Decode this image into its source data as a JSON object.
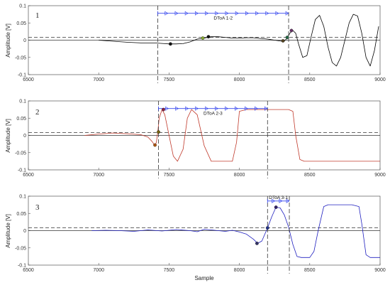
{
  "figure": {
    "xlabel": "Sample",
    "ylabel": "Amplitude [V]"
  },
  "chart_data": [
    {
      "type": "line",
      "panel_label": "1",
      "xlim": [
        6500,
        9000
      ],
      "ylim": [
        -0.1,
        0.1
      ],
      "x_ticks": [
        "6500",
        "7000",
        "7500",
        "8000",
        "8500",
        "9000"
      ],
      "y_ticks": [
        "0.1",
        "0.05",
        "0",
        "-0.05",
        "-0.1"
      ],
      "xlabel": "",
      "ylabel": "Amplitude [V]",
      "series_color": "#000000",
      "series": [
        {
          "x": [
            7000,
            7100,
            7200,
            7300,
            7400,
            7430,
            7470,
            7500,
            7550,
            7600,
            7650,
            7700,
            7750,
            7800,
            7850,
            7900,
            7950,
            8000,
            8050,
            8100,
            8150,
            8200,
            8250,
            8300,
            8320,
            8340,
            8360,
            8380,
            8400,
            8420,
            8450,
            8480,
            8510,
            8540,
            8570,
            8600,
            8630,
            8660,
            8690,
            8720,
            8750,
            8780,
            8810,
            8840,
            8870,
            8900,
            8930,
            8960,
            8990
          ],
          "y": [
            0,
            -0.003,
            -0.006,
            -0.008,
            -0.008,
            -0.009,
            -0.01,
            -0.011,
            -0.011,
            -0.01,
            -0.005,
            0.003,
            0.006,
            0.01,
            0.01,
            0.008,
            0.006,
            0.006,
            0.007,
            0.007,
            0.005,
            0.003,
            0.0,
            -0.003,
            -0.002,
            0.006,
            0.021,
            0.028,
            0.02,
            -0.01,
            -0.05,
            -0.045,
            0.01,
            0.06,
            0.072,
            0.04,
            -0.02,
            -0.065,
            -0.075,
            -0.05,
            0.0,
            0.05,
            0.075,
            0.07,
            0.02,
            -0.05,
            -0.075,
            -0.03,
            0.04
          ]
        }
      ],
      "threshold": 0.008,
      "markers": [
        {
          "x": 7510,
          "y": -0.011,
          "color": "#111111"
        },
        {
          "x": 7740,
          "y": 0.006,
          "color": "#88aa33"
        },
        {
          "x": 7780,
          "y": 0.01,
          "color": "#111111"
        },
        {
          "x": 8310,
          "y": -0.002,
          "color": "#554422"
        },
        {
          "x": 8340,
          "y": 0.008,
          "color": "#226644"
        },
        {
          "x": 8370,
          "y": 0.028,
          "color": "#663366"
        }
      ],
      "vlines": [
        7420,
        8350
      ],
      "arrow": {
        "x_start": 7420,
        "x_end": 8350,
        "y": 0.078,
        "label": "DToA 1-2"
      }
    },
    {
      "type": "line",
      "panel_label": "2",
      "xlim": [
        6500,
        9000
      ],
      "ylim": [
        -0.1,
        0.1
      ],
      "x_ticks": [
        "6500",
        "7000",
        "7500",
        "8000",
        "8500",
        "9000"
      ],
      "y_ticks": [
        "0.1",
        "0.05",
        "0",
        "-0.05",
        "-0.1"
      ],
      "xlabel": "",
      "ylabel": "Amplitude [V]",
      "series_color": "#c0392b",
      "series": [
        {
          "x": [
            6900,
            7000,
            7100,
            7200,
            7300,
            7350,
            7380,
            7400,
            7410,
            7420,
            7430,
            7450,
            7470,
            7500,
            7530,
            7560,
            7600,
            7630,
            7660,
            7700,
            7750,
            7800,
            7850,
            7900,
            7950,
            7980,
            8000,
            8050,
            8100,
            8150,
            8200,
            8250,
            8300,
            8350,
            8380,
            8400,
            8430,
            8460,
            8500,
            8600,
            8700,
            8800,
            8900,
            9000
          ],
          "y": [
            0,
            0.004,
            0.007,
            0.005,
            0.002,
            -0.005,
            -0.018,
            -0.03,
            -0.02,
            0.01,
            0.05,
            0.075,
            0.06,
            0.0,
            -0.06,
            -0.075,
            -0.04,
            0.05,
            0.075,
            0.06,
            -0.03,
            -0.075,
            -0.075,
            -0.075,
            -0.075,
            -0.02,
            0.07,
            0.075,
            0.075,
            0.075,
            0.075,
            0.075,
            0.075,
            0.075,
            0.07,
            0.0,
            -0.07,
            -0.075,
            -0.075,
            -0.075,
            -0.075,
            -0.075,
            -0.075,
            -0.075
          ]
        }
      ],
      "threshold": 0.008,
      "markers": [
        {
          "x": 7400,
          "y": -0.028,
          "color": "#aa5511"
        },
        {
          "x": 7425,
          "y": 0.01,
          "color": "#776611"
        },
        {
          "x": 7460,
          "y": 0.075,
          "color": "#882244"
        }
      ],
      "vlines": [
        7425,
        8200
      ],
      "arrow": {
        "x_start": 7425,
        "x_end": 8200,
        "y": 0.078,
        "label": "DToA 2-3"
      }
    },
    {
      "type": "line",
      "panel_label": "3",
      "xlim": [
        6500,
        9000
      ],
      "ylim": [
        -0.1,
        0.1
      ],
      "x_ticks": [
        "6500",
        "7000",
        "7500",
        "8000",
        "8500",
        "9000"
      ],
      "y_ticks": [
        "0.1",
        "0.05",
        "0",
        "-0.05",
        "-0.1"
      ],
      "xlabel": "Sample",
      "ylabel": "Amplitude [V]",
      "series_color": "#1f1fbf",
      "series": [
        {
          "x": [
            6950,
            7050,
            7150,
            7250,
            7350,
            7450,
            7550,
            7650,
            7700,
            7750,
            7800,
            7850,
            7900,
            7950,
            8000,
            8050,
            8100,
            8130,
            8160,
            8200,
            8230,
            8260,
            8290,
            8320,
            8350,
            8380,
            8410,
            8440,
            8470,
            8500,
            8530,
            8560,
            8600,
            8630,
            8660,
            8700,
            8750,
            8800,
            8850,
            8870,
            8900,
            8930,
            8960,
            9000
          ],
          "y": [
            0,
            0.001,
            0.0,
            -0.002,
            0.002,
            -0.001,
            0.003,
            0.0,
            -0.003,
            0.004,
            0.002,
            0.0,
            -0.002,
            0.001,
            -0.004,
            -0.01,
            -0.025,
            -0.037,
            -0.03,
            0.008,
            0.04,
            0.068,
            0.066,
            0.045,
            0.01,
            -0.04,
            -0.075,
            -0.078,
            -0.078,
            -0.078,
            -0.06,
            0.0,
            0.07,
            0.075,
            0.075,
            0.075,
            0.075,
            0.075,
            0.07,
            0.02,
            -0.07,
            -0.078,
            -0.078,
            -0.078
          ]
        }
      ],
      "threshold": 0.008,
      "markers": [
        {
          "x": 8125,
          "y": -0.037,
          "color": "#333366"
        },
        {
          "x": 8200,
          "y": 0.008,
          "color": "#223388"
        },
        {
          "x": 8260,
          "y": 0.068,
          "color": "#332266"
        }
      ],
      "vlines": [
        8200,
        8355
      ],
      "arrow": {
        "x_start": 8200,
        "x_end": 8355,
        "y": 0.086,
        "label": "DToA 3-1"
      }
    }
  ]
}
